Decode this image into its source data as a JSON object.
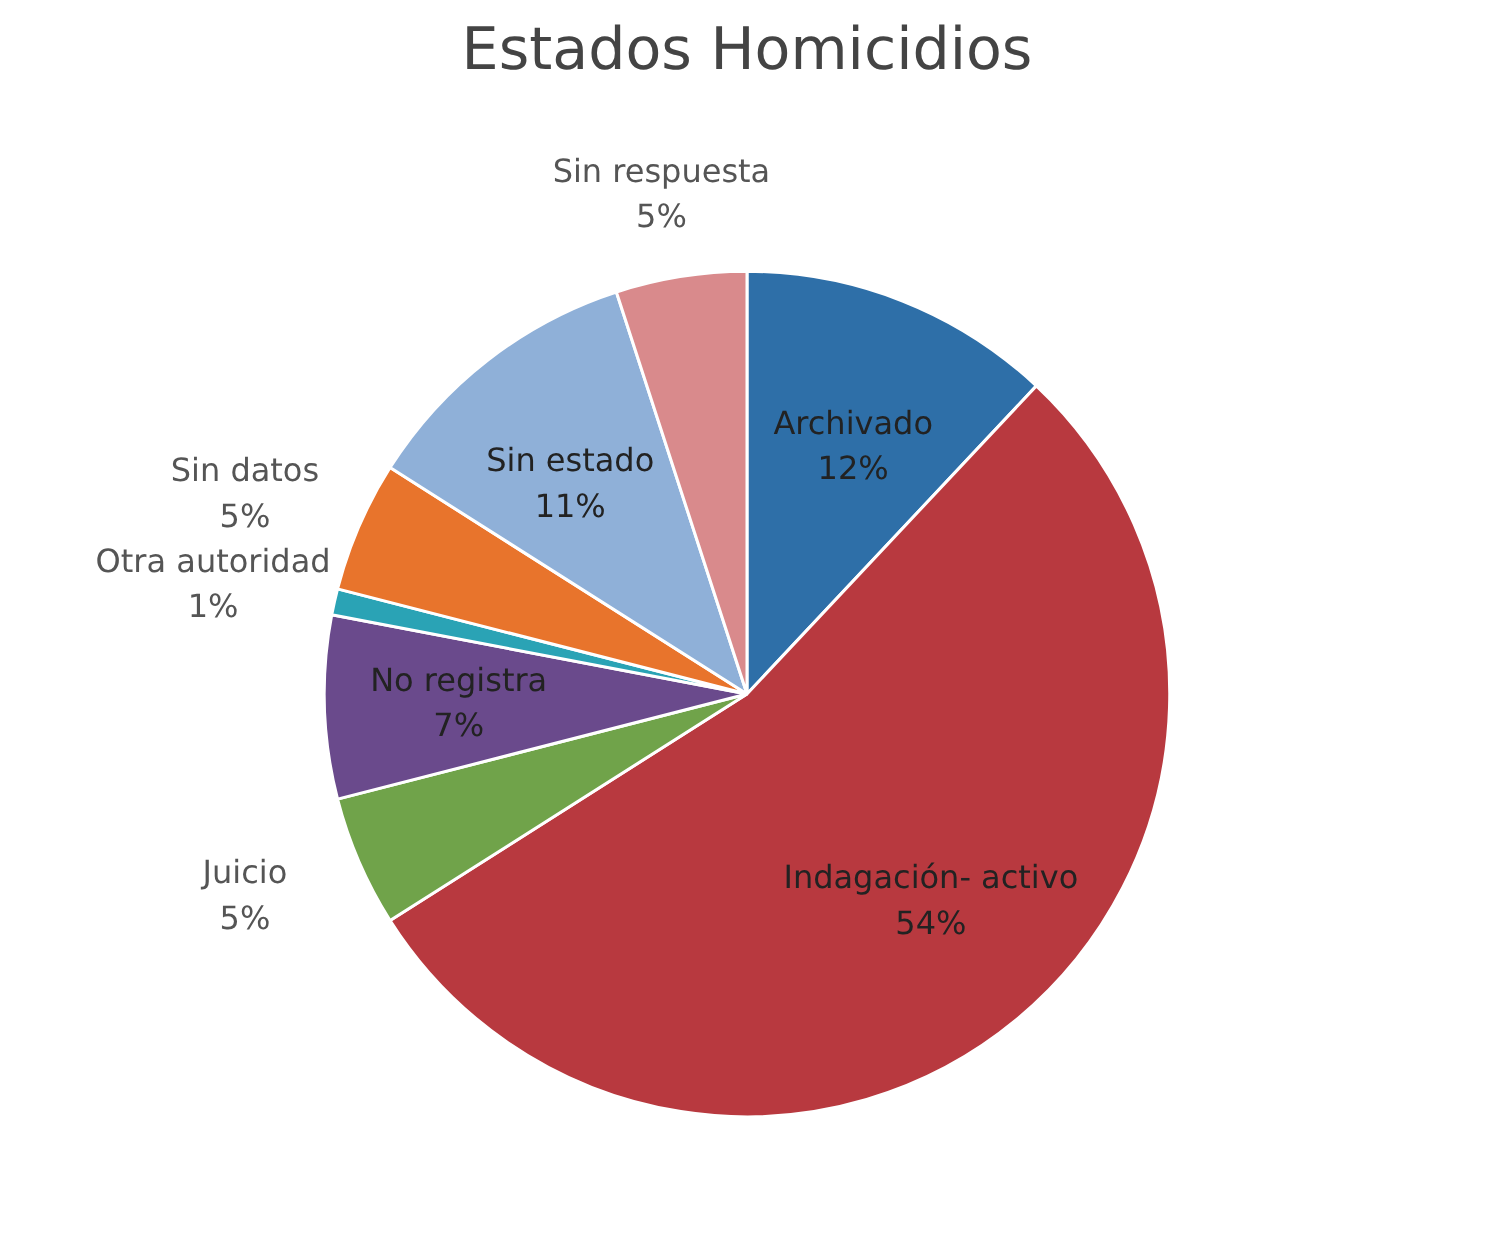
{
  "chart_data": {
    "type": "pie",
    "title": "Estados Homicidios",
    "categories": [
      "Archivado",
      "Indagación- activo",
      "Juicio",
      "No registra",
      "Otra autoridad",
      "Sin datos",
      "Sin estado",
      "Sin respuesta"
    ],
    "values": [
      12,
      54,
      5,
      7,
      1,
      5,
      11,
      5
    ],
    "value_labels": [
      "12%",
      "54%",
      "5%",
      "7%",
      "1%",
      "5%",
      "11%",
      "5%"
    ],
    "colors": [
      "#2e6fa8",
      "#b8393f",
      "#70a34a",
      "#6a4a8c",
      "#2aa3b5",
      "#e8742c",
      "#8fb0d8",
      "#d98a8c"
    ],
    "legend": false
  }
}
